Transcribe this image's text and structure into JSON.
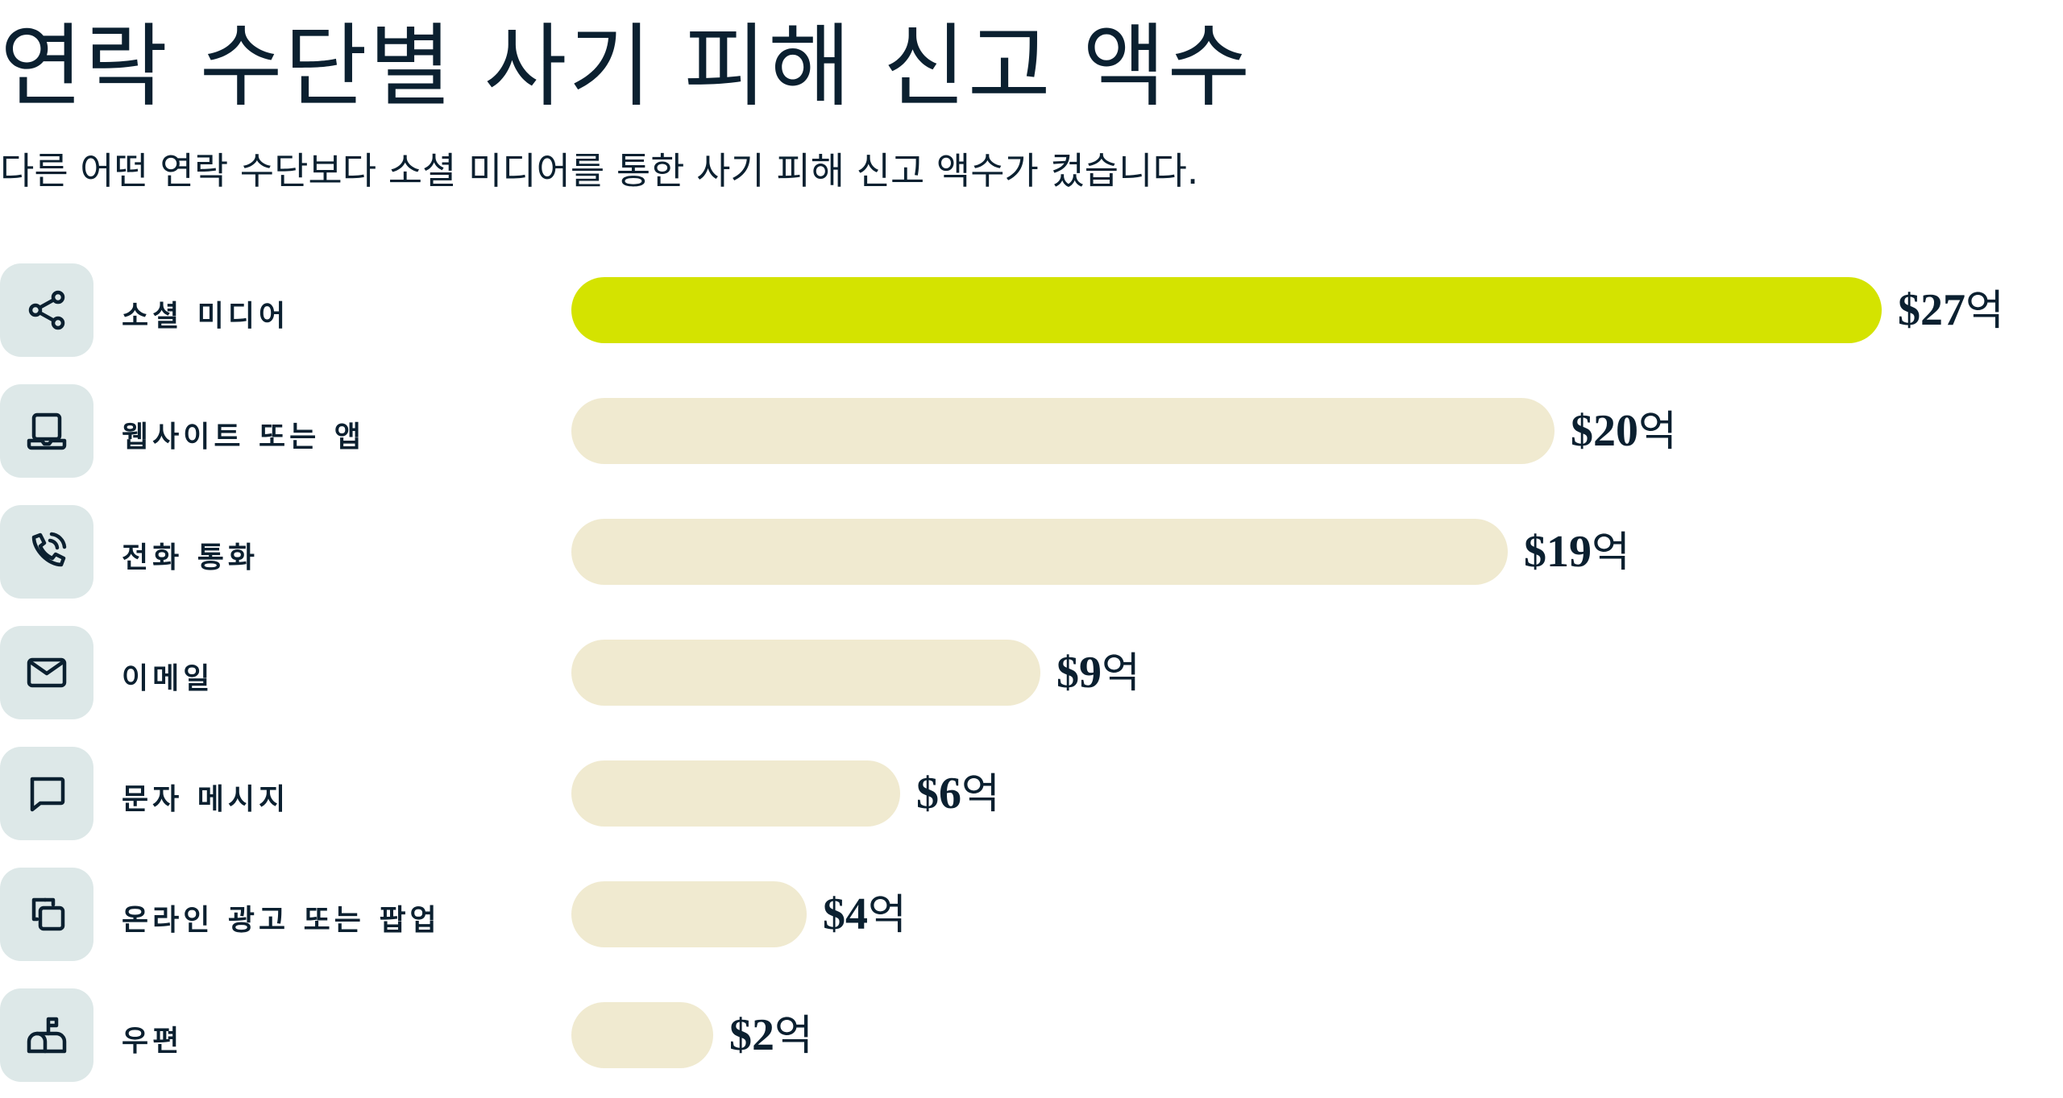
{
  "title": "연락 수단별 사기 피해 신고 액수",
  "subtitle": "다른 어떤 연락 수단보다 소셜 미디어를 통한 사기 피해 신고 액수가 컸습니다.",
  "colors": {
    "text": "#0b2030",
    "highlight_bar": "#d4e300",
    "bar": "#f0ead0",
    "icon_bg": "#dde8e8"
  },
  "chart_data": {
    "type": "bar",
    "orientation": "horizontal",
    "unit": "억",
    "categories": [
      "소셜 미디어",
      "웹사이트 또는 앱",
      "전화 통화",
      "이메일",
      "문자 메시지",
      "온라인 광고 또는 팝업",
      "우편"
    ],
    "icons": [
      "share-icon",
      "laptop-icon",
      "phone-call-icon",
      "mail-icon",
      "chat-bubble-icon",
      "popup-windows-icon",
      "mailbox-icon"
    ],
    "values": [
      27,
      20,
      19,
      9,
      6,
      4,
      2
    ],
    "value_labels": [
      "$27",
      "$20",
      "$19",
      "$9",
      "$6",
      "$4",
      "$2"
    ],
    "highlighted": [
      true,
      false,
      false,
      false,
      false,
      false,
      false
    ]
  }
}
